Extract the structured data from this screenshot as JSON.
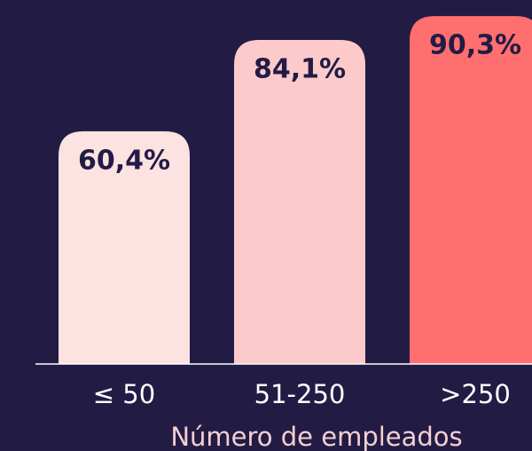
{
  "chart_data": {
    "type": "bar",
    "x_label": "Número de empleados",
    "categories": [
      "≤ 50",
      "51-250",
      ">250"
    ],
    "values": [
      60.4,
      84.1,
      90.3
    ],
    "value_labels": [
      "60,4%",
      "84,1%",
      "90,3%"
    ],
    "colors": [
      "#fde2e2",
      "#fccaca",
      "#ff6f6f"
    ],
    "ylim": [
      0,
      100
    ]
  }
}
